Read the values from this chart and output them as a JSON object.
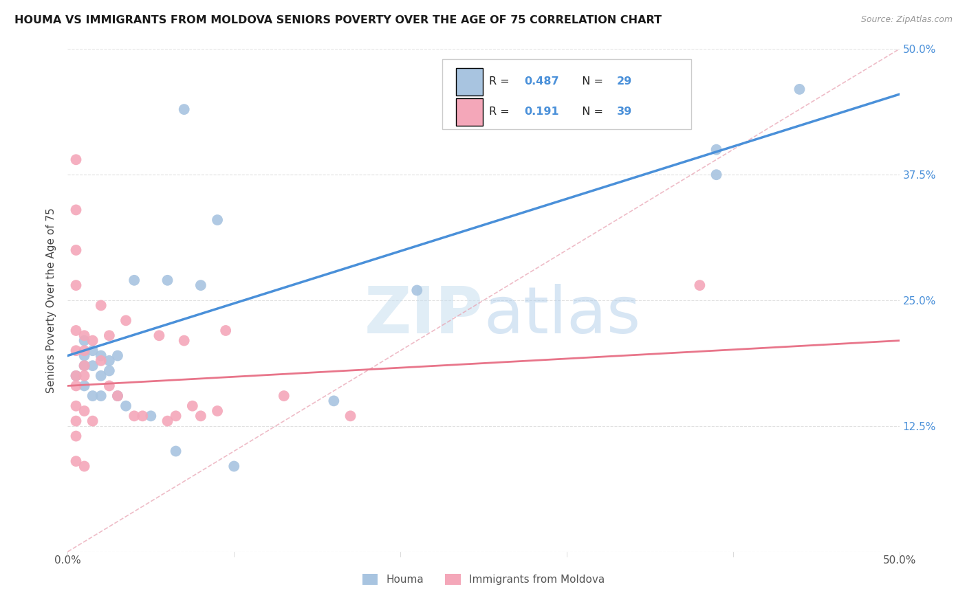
{
  "title": "HOUMA VS IMMIGRANTS FROM MOLDOVA SENIORS POVERTY OVER THE AGE OF 75 CORRELATION CHART",
  "source": "Source: ZipAtlas.com",
  "ylabel": "Seniors Poverty Over the Age of 75",
  "legend_label_1": "Houma",
  "legend_label_2": "Immigrants from Moldova",
  "xlim": [
    0,
    0.5
  ],
  "ylim": [
    0,
    0.5
  ],
  "xtick_positions": [
    0.0,
    0.1,
    0.2,
    0.3,
    0.4,
    0.5
  ],
  "xticklabels": [
    "0.0%",
    "",
    "",
    "",
    "",
    "50.0%"
  ],
  "ytick_positions": [
    0.0,
    0.125,
    0.25,
    0.375,
    0.5
  ],
  "yticklabels_right": [
    "",
    "12.5%",
    "25.0%",
    "37.5%",
    "50.0%"
  ],
  "color_blue": "#a8c4e0",
  "color_pink": "#f4a7b9",
  "line_color_blue": "#4a90d9",
  "line_color_pink": "#e8758a",
  "ref_line_color": "#e8a0b0",
  "watermark_color": "#c8dff0",
  "background_color": "#ffffff",
  "grid_color": "#e0e0e0",
  "houma_x": [
    0.005,
    0.01,
    0.01,
    0.01,
    0.01,
    0.015,
    0.015,
    0.015,
    0.02,
    0.02,
    0.02,
    0.025,
    0.025,
    0.03,
    0.03,
    0.035,
    0.04,
    0.05,
    0.06,
    0.065,
    0.07,
    0.08,
    0.09,
    0.1,
    0.16,
    0.21,
    0.39,
    0.44,
    0.39
  ],
  "houma_y": [
    0.175,
    0.21,
    0.195,
    0.185,
    0.165,
    0.2,
    0.185,
    0.155,
    0.195,
    0.175,
    0.155,
    0.19,
    0.18,
    0.195,
    0.155,
    0.145,
    0.27,
    0.135,
    0.27,
    0.1,
    0.44,
    0.265,
    0.33,
    0.085,
    0.15,
    0.26,
    0.375,
    0.46,
    0.4
  ],
  "moldova_x": [
    0.005,
    0.005,
    0.005,
    0.005,
    0.005,
    0.005,
    0.005,
    0.005,
    0.005,
    0.005,
    0.005,
    0.005,
    0.01,
    0.01,
    0.01,
    0.01,
    0.01,
    0.01,
    0.015,
    0.015,
    0.02,
    0.02,
    0.025,
    0.025,
    0.03,
    0.035,
    0.04,
    0.045,
    0.055,
    0.06,
    0.065,
    0.07,
    0.075,
    0.08,
    0.09,
    0.095,
    0.13,
    0.17,
    0.38
  ],
  "moldova_y": [
    0.39,
    0.34,
    0.3,
    0.265,
    0.22,
    0.2,
    0.175,
    0.165,
    0.145,
    0.13,
    0.115,
    0.09,
    0.215,
    0.2,
    0.185,
    0.175,
    0.14,
    0.085,
    0.21,
    0.13,
    0.245,
    0.19,
    0.215,
    0.165,
    0.155,
    0.23,
    0.135,
    0.135,
    0.215,
    0.13,
    0.135,
    0.21,
    0.145,
    0.135,
    0.14,
    0.22,
    0.155,
    0.135,
    0.265
  ],
  "houma_line_x0": 0.0,
  "houma_line_y0": 0.195,
  "houma_line_x1": 0.5,
  "houma_line_y1": 0.455,
  "moldova_line_x0": 0.0,
  "moldova_line_y0": 0.165,
  "moldova_line_x1": 0.5,
  "moldova_line_y1": 0.21
}
